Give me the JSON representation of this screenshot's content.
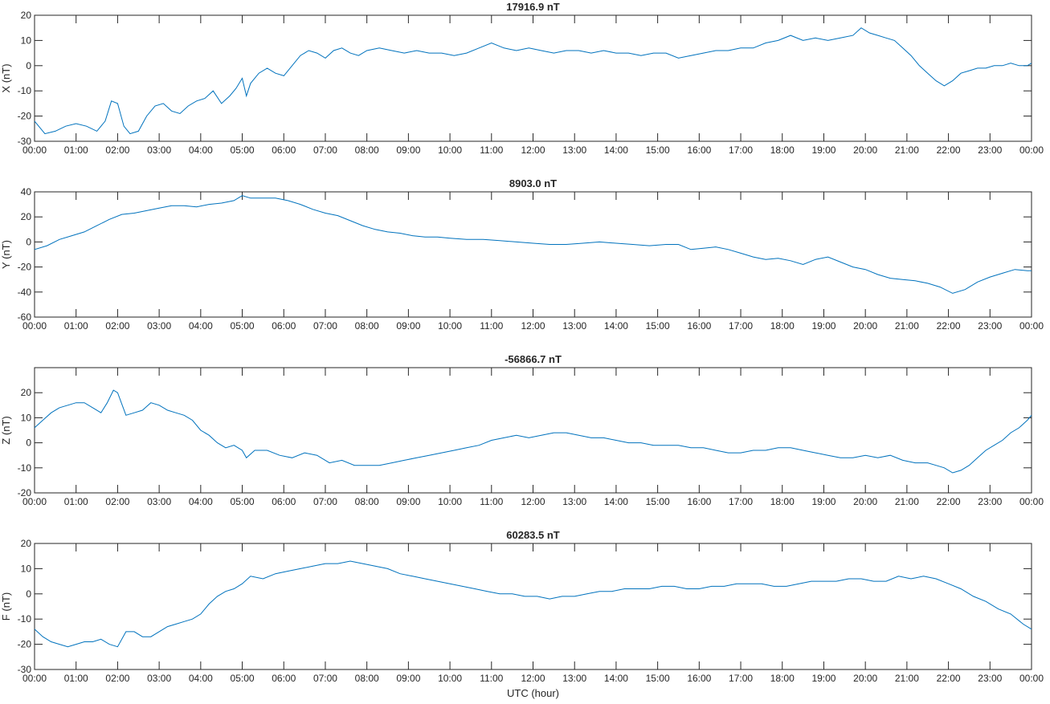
{
  "chart_data": {
    "type": "line",
    "xlabel": "UTC (hour)",
    "x_tick_labels": [
      "00:00",
      "01:00",
      "02:00",
      "03:00",
      "04:00",
      "05:00",
      "06:00",
      "07:00",
      "08:00",
      "09:00",
      "10:00",
      "11:00",
      "12:00",
      "13:00",
      "14:00",
      "15:00",
      "16:00",
      "17:00",
      "18:00",
      "19:00",
      "20:00",
      "21:00",
      "22:00",
      "23:00",
      "00:00"
    ],
    "xlim": [
      0,
      24
    ],
    "line_color": "#0072bd",
    "grid": false,
    "panels": [
      {
        "title": "17916.9 nT",
        "ylabel": "X (nT)",
        "ylim": [
          -30,
          20
        ],
        "yticks": [
          -30,
          -20,
          -10,
          0,
          10,
          20
        ],
        "x": [
          0,
          0.25,
          0.5,
          0.75,
          1.0,
          1.25,
          1.5,
          1.7,
          1.85,
          2.0,
          2.15,
          2.3,
          2.5,
          2.7,
          2.9,
          3.1,
          3.3,
          3.5,
          3.7,
          3.9,
          4.1,
          4.3,
          4.5,
          4.7,
          4.85,
          5.0,
          5.1,
          5.2,
          5.4,
          5.6,
          5.8,
          6.0,
          6.2,
          6.4,
          6.6,
          6.8,
          7.0,
          7.2,
          7.4,
          7.6,
          7.8,
          8.0,
          8.3,
          8.6,
          8.9,
          9.2,
          9.5,
          9.8,
          10.1,
          10.4,
          10.7,
          11.0,
          11.3,
          11.6,
          11.9,
          12.2,
          12.5,
          12.8,
          13.1,
          13.4,
          13.7,
          14.0,
          14.3,
          14.6,
          14.9,
          15.2,
          15.5,
          15.8,
          16.1,
          16.4,
          16.7,
          17.0,
          17.3,
          17.6,
          17.9,
          18.2,
          18.5,
          18.8,
          19.1,
          19.4,
          19.7,
          19.9,
          20.1,
          20.3,
          20.5,
          20.7,
          20.9,
          21.1,
          21.3,
          21.5,
          21.7,
          21.9,
          22.1,
          22.3,
          22.5,
          22.7,
          22.9,
          23.1,
          23.3,
          23.5,
          23.7,
          23.9,
          24.0
        ],
        "y": [
          -22,
          -27,
          -26,
          -24,
          -23,
          -24,
          -26,
          -22,
          -14,
          -15,
          -24,
          -27,
          -26,
          -20,
          -16,
          -15,
          -18,
          -19,
          -16,
          -14,
          -13,
          -10,
          -15,
          -12,
          -9,
          -5,
          -12,
          -7,
          -3,
          -1,
          -3,
          -4,
          0,
          4,
          6,
          5,
          3,
          6,
          7,
          5,
          4,
          6,
          7,
          6,
          5,
          6,
          5,
          5,
          4,
          5,
          7,
          9,
          7,
          6,
          7,
          6,
          5,
          6,
          6,
          5,
          6,
          5,
          5,
          4,
          5,
          5,
          3,
          4,
          5,
          6,
          6,
          7,
          7,
          9,
          10,
          12,
          10,
          11,
          10,
          11,
          12,
          15,
          13,
          12,
          11,
          10,
          7,
          4,
          0,
          -3,
          -6,
          -8,
          -6,
          -3,
          -2,
          -1,
          -1,
          0,
          0,
          1,
          0,
          0,
          1
        ]
      },
      {
        "title": "8903.0 nT",
        "ylabel": "Y (nT)",
        "ylim": [
          -60,
          40
        ],
        "yticks": [
          -60,
          -40,
          -20,
          0,
          20,
          40
        ],
        "x": [
          0,
          0.3,
          0.6,
          0.9,
          1.2,
          1.5,
          1.8,
          2.1,
          2.4,
          2.7,
          3.0,
          3.3,
          3.6,
          3.9,
          4.2,
          4.5,
          4.8,
          5.0,
          5.2,
          5.5,
          5.8,
          6.1,
          6.4,
          6.7,
          7.0,
          7.3,
          7.6,
          7.9,
          8.2,
          8.5,
          8.8,
          9.1,
          9.4,
          9.7,
          10.0,
          10.4,
          10.8,
          11.2,
          11.6,
          12.0,
          12.4,
          12.8,
          13.2,
          13.6,
          14.0,
          14.4,
          14.8,
          15.2,
          15.5,
          15.8,
          16.1,
          16.4,
          16.7,
          17.0,
          17.3,
          17.6,
          17.9,
          18.2,
          18.5,
          18.8,
          19.1,
          19.4,
          19.7,
          20.0,
          20.3,
          20.6,
          20.9,
          21.2,
          21.5,
          21.8,
          22.1,
          22.4,
          22.7,
          23.0,
          23.3,
          23.6,
          23.9,
          24.0
        ],
        "y": [
          -6,
          -3,
          2,
          5,
          8,
          13,
          18,
          22,
          23,
          25,
          27,
          29,
          29,
          28,
          30,
          31,
          33,
          37,
          35,
          35,
          35,
          33,
          30,
          26,
          23,
          21,
          17,
          13,
          10,
          8,
          7,
          5,
          4,
          4,
          3,
          2,
          2,
          1,
          0,
          -1,
          -2,
          -2,
          -1,
          0,
          -1,
          -2,
          -3,
          -2,
          -2,
          -6,
          -5,
          -4,
          -6,
          -9,
          -12,
          -14,
          -13,
          -15,
          -18,
          -14,
          -12,
          -16,
          -20,
          -22,
          -26,
          -29,
          -30,
          -31,
          -33,
          -36,
          -41,
          -38,
          -32,
          -28,
          -25,
          -22,
          -23,
          -23
        ]
      },
      {
        "title": "-56866.7 nT",
        "ylabel": "Z (nT)",
        "ylim": [
          -20,
          30
        ],
        "yticks": [
          -20,
          -10,
          0,
          10,
          20
        ],
        "x": [
          0,
          0.2,
          0.4,
          0.6,
          0.8,
          1.0,
          1.2,
          1.4,
          1.6,
          1.75,
          1.9,
          2.0,
          2.2,
          2.4,
          2.6,
          2.8,
          3.0,
          3.2,
          3.4,
          3.6,
          3.8,
          4.0,
          4.2,
          4.4,
          4.6,
          4.8,
          5.0,
          5.1,
          5.3,
          5.6,
          5.9,
          6.2,
          6.5,
          6.8,
          7.1,
          7.4,
          7.7,
          8.0,
          8.3,
          8.6,
          8.9,
          9.2,
          9.5,
          9.8,
          10.1,
          10.4,
          10.7,
          11.0,
          11.3,
          11.6,
          11.9,
          12.2,
          12.5,
          12.8,
          13.1,
          13.4,
          13.7,
          14.0,
          14.3,
          14.6,
          14.9,
          15.2,
          15.5,
          15.8,
          16.1,
          16.4,
          16.7,
          17.0,
          17.3,
          17.6,
          17.9,
          18.2,
          18.5,
          18.8,
          19.1,
          19.4,
          19.7,
          20.0,
          20.3,
          20.6,
          20.9,
          21.2,
          21.5,
          21.7,
          21.9,
          22.1,
          22.3,
          22.5,
          22.7,
          22.9,
          23.1,
          23.3,
          23.5,
          23.7,
          23.9,
          24.0
        ],
        "y": [
          6,
          9,
          12,
          14,
          15,
          16,
          16,
          14,
          12,
          16,
          21,
          20,
          11,
          12,
          13,
          16,
          15,
          13,
          12,
          11,
          9,
          5,
          3,
          0,
          -2,
          -1,
          -3,
          -6,
          -3,
          -3,
          -5,
          -6,
          -4,
          -5,
          -8,
          -7,
          -9,
          -9,
          -9,
          -8,
          -7,
          -6,
          -5,
          -4,
          -3,
          -2,
          -1,
          1,
          2,
          3,
          2,
          3,
          4,
          4,
          3,
          2,
          2,
          1,
          0,
          0,
          -1,
          -1,
          -1,
          -2,
          -2,
          -3,
          -4,
          -4,
          -3,
          -3,
          -2,
          -2,
          -3,
          -4,
          -5,
          -6,
          -6,
          -5,
          -6,
          -5,
          -7,
          -8,
          -8,
          -9,
          -10,
          -12,
          -11,
          -9,
          -6,
          -3,
          -1,
          1,
          4,
          6,
          9,
          11
        ]
      },
      {
        "title": "60283.5 nT",
        "ylabel": "F (nT)",
        "ylim": [
          -30,
          20
        ],
        "yticks": [
          -30,
          -20,
          -10,
          0,
          10,
          20
        ],
        "x": [
          0,
          0.2,
          0.4,
          0.6,
          0.8,
          1.0,
          1.2,
          1.4,
          1.6,
          1.8,
          2.0,
          2.2,
          2.4,
          2.6,
          2.8,
          3.0,
          3.2,
          3.4,
          3.6,
          3.8,
          4.0,
          4.2,
          4.4,
          4.6,
          4.8,
          5.0,
          5.2,
          5.5,
          5.8,
          6.1,
          6.4,
          6.7,
          7.0,
          7.3,
          7.6,
          7.9,
          8.2,
          8.5,
          8.8,
          9.1,
          9.4,
          9.7,
          10.0,
          10.3,
          10.6,
          10.9,
          11.2,
          11.5,
          11.8,
          12.1,
          12.4,
          12.7,
          13.0,
          13.3,
          13.6,
          13.9,
          14.2,
          14.5,
          14.8,
          15.1,
          15.4,
          15.7,
          16.0,
          16.3,
          16.6,
          16.9,
          17.2,
          17.5,
          17.8,
          18.1,
          18.4,
          18.7,
          19.0,
          19.3,
          19.6,
          19.9,
          20.2,
          20.5,
          20.8,
          21.1,
          21.4,
          21.7,
          22.0,
          22.3,
          22.6,
          22.9,
          23.2,
          23.5,
          23.8,
          24.0
        ],
        "y": [
          -14,
          -17,
          -19,
          -20,
          -21,
          -20,
          -19,
          -19,
          -18,
          -20,
          -21,
          -15,
          -15,
          -17,
          -17,
          -15,
          -13,
          -12,
          -11,
          -10,
          -8,
          -4,
          -1,
          1,
          2,
          4,
          7,
          6,
          8,
          9,
          10,
          11,
          12,
          12,
          13,
          12,
          11,
          10,
          8,
          7,
          6,
          5,
          4,
          3,
          2,
          1,
          0,
          0,
          -1,
          -1,
          -2,
          -1,
          -1,
          0,
          1,
          1,
          2,
          2,
          2,
          3,
          3,
          2,
          2,
          3,
          3,
          4,
          4,
          4,
          3,
          3,
          4,
          5,
          5,
          5,
          6,
          6,
          5,
          5,
          7,
          6,
          7,
          6,
          4,
          2,
          -1,
          -3,
          -6,
          -8,
          -12,
          -14
        ]
      }
    ]
  }
}
